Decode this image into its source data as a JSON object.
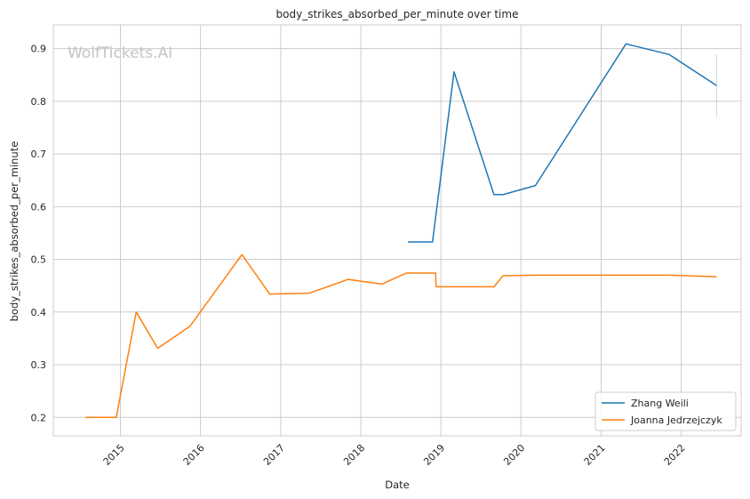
{
  "chart_data": {
    "type": "line",
    "title": "body_strikes_absorbed_per_minute over time",
    "xlabel": "Date",
    "ylabel": "body_strikes_absorbed_per_minute",
    "watermark": "WolfTickets.AI",
    "xlim": [
      "2014-03-01",
      "2022-10-01"
    ],
    "ylim": [
      0.165,
      0.945
    ],
    "x_ticks": [
      "2015",
      "2016",
      "2017",
      "2018",
      "2019",
      "2020",
      "2021",
      "2022"
    ],
    "y_ticks": [
      "0.2",
      "0.3",
      "0.4",
      "0.5",
      "0.6",
      "0.7",
      "0.8",
      "0.9"
    ],
    "grid": true,
    "legend_position": "lower-right",
    "series": [
      {
        "name": "Zhang Weili",
        "color": "#1f77b4",
        "points": [
          {
            "x": "2018-08-04",
            "y": 0.533
          },
          {
            "x": "2018-11-24",
            "y": 0.533
          },
          {
            "x": "2019-03-02",
            "y": 0.856
          },
          {
            "x": "2019-08-31",
            "y": 0.623
          },
          {
            "x": "2019-10-12",
            "y": 0.623
          },
          {
            "x": "2020-03-07",
            "y": 0.64
          },
          {
            "x": "2021-04-24",
            "y": 0.909
          },
          {
            "x": "2021-11-06",
            "y": 0.889
          },
          {
            "x": "2022-06-11",
            "y": 0.83
          }
        ],
        "error_bar": {
          "x": "2022-06-11",
          "low": 0.77,
          "high": 0.89
        }
      },
      {
        "name": "Joanna Jedrzejczyk",
        "color": "#ff7f0e",
        "points": [
          {
            "x": "2014-07-26",
            "y": 0.2
          },
          {
            "x": "2014-12-13",
            "y": 0.2
          },
          {
            "x": "2015-03-14",
            "y": 0.4
          },
          {
            "x": "2015-06-20",
            "y": 0.331
          },
          {
            "x": "2015-11-14",
            "y": 0.373
          },
          {
            "x": "2016-07-08",
            "y": 0.509
          },
          {
            "x": "2016-11-12",
            "y": 0.434
          },
          {
            "x": "2017-05-13",
            "y": 0.436
          },
          {
            "x": "2017-11-04",
            "y": 0.462
          },
          {
            "x": "2018-04-07",
            "y": 0.453
          },
          {
            "x": "2018-07-28",
            "y": 0.474
          },
          {
            "x": "2018-12-08",
            "y": 0.474
          },
          {
            "x": "2018-12-10",
            "y": 0.448
          },
          {
            "x": "2019-08-31",
            "y": 0.448
          },
          {
            "x": "2019-10-12",
            "y": 0.469
          },
          {
            "x": "2020-03-07",
            "y": 0.47
          },
          {
            "x": "2021-11-06",
            "y": 0.47
          },
          {
            "x": "2022-06-11",
            "y": 0.467
          }
        ]
      }
    ]
  }
}
